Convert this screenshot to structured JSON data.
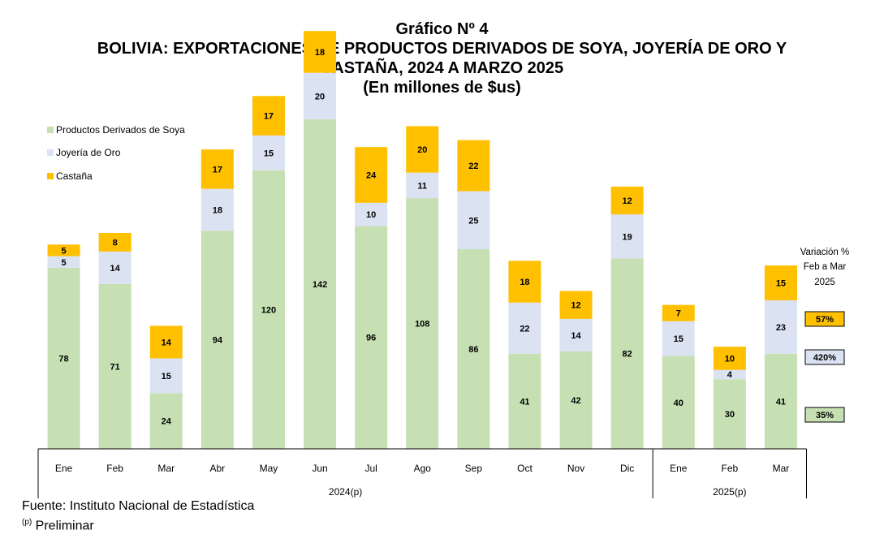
{
  "header": {
    "line1": "Gráfico Nº 4",
    "line2": "BOLIVIA: EXPORTACIONES DE PRODUCTOS DERIVADOS DE SOYA, JOYERÍA DE ORO Y",
    "line3": "CASTAÑA, 2024 A MARZO 2025",
    "line4": "(En millones de $us)"
  },
  "colors": {
    "soya": "#c6e0b4",
    "oro": "#dbe2f2",
    "castana": "#ffc000"
  },
  "chart_data": {
    "type": "bar",
    "stacked": true,
    "categories": [
      "Ene",
      "Feb",
      "Mar",
      "Abr",
      "May",
      "Jun",
      "Jul",
      "Ago",
      "Sep",
      "Oct",
      "Nov",
      "Dic",
      "Ene",
      "Feb",
      "Mar"
    ],
    "groups": [
      {
        "label": "2024(p)",
        "count": 12
      },
      {
        "label": "2025(p)",
        "count": 3
      }
    ],
    "series": [
      {
        "name": "Productos Derivados de Soya",
        "values": [
          78,
          71,
          24,
          94,
          120,
          142,
          96,
          108,
          86,
          41,
          42,
          82,
          40,
          30,
          41
        ]
      },
      {
        "name": "Joyería de Oro",
        "values": [
          5,
          14,
          15,
          18,
          15,
          20,
          10,
          11,
          25,
          22,
          14,
          19,
          15,
          4,
          23
        ]
      },
      {
        "name": "Castaña",
        "values": [
          5,
          8,
          14,
          17,
          17,
          18,
          24,
          20,
          22,
          18,
          12,
          12,
          7,
          10,
          15
        ]
      }
    ],
    "ylim": [
      0,
      175
    ],
    "legend": "top-left",
    "grid": false,
    "variation": {
      "title_lines": [
        "Variación %",
        "Feb a Mar",
        "2025"
      ],
      "values": [
        {
          "series": "Castaña",
          "label": "57%"
        },
        {
          "series": "Joyería de Oro",
          "label": "420%"
        },
        {
          "series": "Productos Derivados de Soya",
          "label": "35%"
        }
      ]
    }
  },
  "footer": {
    "source": "Fuente: Instituto Nacional de Estadística",
    "note_mark": "(p)",
    "note_text": " Preliminar"
  }
}
